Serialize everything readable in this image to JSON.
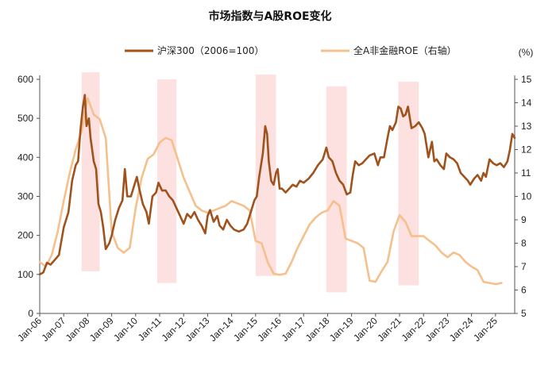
{
  "chart_data": {
    "type": "line",
    "title": "市场指数与A股ROE变化",
    "legend": {
      "placement": "top-center"
    },
    "x_tick_labels": [
      "Jan-06",
      "Jan-07",
      "Jan-08",
      "Jan-09",
      "Jan-10",
      "Jan-11",
      "Jan-12",
      "Jan-13",
      "Jan-14",
      "Jan-15",
      "Jan-16",
      "Jan-17",
      "Jan-18",
      "Jan-19",
      "Jan-20",
      "Jan-21",
      "Jan-22",
      "Jan-23",
      "Jan-24",
      "Jan-25"
    ],
    "x_range": [
      2006.0,
      2025.8
    ],
    "y_left": {
      "range": [
        0,
        600
      ],
      "ticks": [
        0,
        100,
        200,
        300,
        400,
        500,
        600
      ]
    },
    "y_right": {
      "range": [
        5,
        15
      ],
      "ticks": [
        5,
        6,
        7,
        8,
        9,
        10,
        11,
        12,
        13,
        14,
        15
      ],
      "unit": "(%)"
    },
    "shaded_periods": [
      {
        "x": [
          2007.75,
          2008.5
        ],
        "y_right": [
          6.8,
          15.3
        ]
      },
      {
        "x": [
          2010.9,
          2011.7
        ],
        "y_right": [
          6.3,
          15.0
        ]
      },
      {
        "x": [
          2015.0,
          2015.85
        ],
        "y_right": [
          6.6,
          15.2
        ]
      },
      {
        "x": [
          2017.95,
          2018.8
        ],
        "y_right": [
          5.9,
          14.7
        ]
      },
      {
        "x": [
          2020.95,
          2021.8
        ],
        "y_right": [
          6.2,
          14.9
        ]
      }
    ],
    "series": [
      {
        "name": "沪深300（2006=100）",
        "axis": "left",
        "color": "#a0521d",
        "points": [
          [
            2006.0,
            100
          ],
          [
            2006.15,
            105
          ],
          [
            2006.3,
            130
          ],
          [
            2006.45,
            125
          ],
          [
            2006.6,
            135
          ],
          [
            2006.8,
            150
          ],
          [
            2007.0,
            220
          ],
          [
            2007.2,
            260
          ],
          [
            2007.35,
            340
          ],
          [
            2007.5,
            380
          ],
          [
            2007.6,
            390
          ],
          [
            2007.7,
            470
          ],
          [
            2007.8,
            530
          ],
          [
            2007.88,
            560
          ],
          [
            2007.95,
            480
          ],
          [
            2008.05,
            500
          ],
          [
            2008.12,
            450
          ],
          [
            2008.25,
            390
          ],
          [
            2008.35,
            370
          ],
          [
            2008.45,
            280
          ],
          [
            2008.55,
            260
          ],
          [
            2008.65,
            220
          ],
          [
            2008.75,
            165
          ],
          [
            2008.9,
            180
          ],
          [
            2009.0,
            200
          ],
          [
            2009.15,
            240
          ],
          [
            2009.3,
            270
          ],
          [
            2009.45,
            290
          ],
          [
            2009.55,
            370
          ],
          [
            2009.65,
            300
          ],
          [
            2009.8,
            300
          ],
          [
            2009.95,
            330
          ],
          [
            2010.05,
            350
          ],
          [
            2010.15,
            320
          ],
          [
            2010.3,
            280
          ],
          [
            2010.45,
            260
          ],
          [
            2010.55,
            230
          ],
          [
            2010.7,
            300
          ],
          [
            2010.85,
            310
          ],
          [
            2010.95,
            335
          ],
          [
            2011.1,
            315
          ],
          [
            2011.25,
            315
          ],
          [
            2011.4,
            300
          ],
          [
            2011.55,
            290
          ],
          [
            2011.7,
            270
          ],
          [
            2011.85,
            250
          ],
          [
            2012.0,
            230
          ],
          [
            2012.15,
            255
          ],
          [
            2012.3,
            245
          ],
          [
            2012.45,
            260
          ],
          [
            2012.6,
            240
          ],
          [
            2012.75,
            225
          ],
          [
            2012.9,
            205
          ],
          [
            2013.0,
            250
          ],
          [
            2013.1,
            265
          ],
          [
            2013.25,
            235
          ],
          [
            2013.4,
            250
          ],
          [
            2013.5,
            225
          ],
          [
            2013.65,
            215
          ],
          [
            2013.8,
            240
          ],
          [
            2013.95,
            225
          ],
          [
            2014.1,
            215
          ],
          [
            2014.3,
            210
          ],
          [
            2014.5,
            215
          ],
          [
            2014.65,
            230
          ],
          [
            2014.8,
            260
          ],
          [
            2014.95,
            290
          ],
          [
            2015.05,
            300
          ],
          [
            2015.15,
            350
          ],
          [
            2015.3,
            410
          ],
          [
            2015.4,
            480
          ],
          [
            2015.48,
            460
          ],
          [
            2015.55,
            390
          ],
          [
            2015.65,
            340
          ],
          [
            2015.75,
            330
          ],
          [
            2015.85,
            360
          ],
          [
            2015.92,
            370
          ],
          [
            2016.0,
            320
          ],
          [
            2016.1,
            320
          ],
          [
            2016.25,
            310
          ],
          [
            2016.4,
            320
          ],
          [
            2016.55,
            330
          ],
          [
            2016.7,
            325
          ],
          [
            2016.85,
            340
          ],
          [
            2017.0,
            335
          ],
          [
            2017.2,
            345
          ],
          [
            2017.4,
            360
          ],
          [
            2017.6,
            380
          ],
          [
            2017.8,
            395
          ],
          [
            2017.95,
            425
          ],
          [
            2018.05,
            400
          ],
          [
            2018.2,
            390
          ],
          [
            2018.35,
            360
          ],
          [
            2018.5,
            340
          ],
          [
            2018.65,
            330
          ],
          [
            2018.8,
            305
          ],
          [
            2018.95,
            310
          ],
          [
            2019.05,
            355
          ],
          [
            2019.15,
            390
          ],
          [
            2019.3,
            380
          ],
          [
            2019.45,
            385
          ],
          [
            2019.6,
            395
          ],
          [
            2019.75,
            405
          ],
          [
            2019.95,
            410
          ],
          [
            2020.1,
            380
          ],
          [
            2020.2,
            400
          ],
          [
            2020.35,
            400
          ],
          [
            2020.5,
            450
          ],
          [
            2020.6,
            480
          ],
          [
            2020.7,
            470
          ],
          [
            2020.85,
            490
          ],
          [
            2020.95,
            530
          ],
          [
            2021.05,
            525
          ],
          [
            2021.15,
            505
          ],
          [
            2021.25,
            510
          ],
          [
            2021.35,
            530
          ],
          [
            2021.5,
            475
          ],
          [
            2021.65,
            480
          ],
          [
            2021.8,
            490
          ],
          [
            2021.95,
            475
          ],
          [
            2022.05,
            460
          ],
          [
            2022.2,
            400
          ],
          [
            2022.35,
            440
          ],
          [
            2022.45,
            390
          ],
          [
            2022.55,
            395
          ],
          [
            2022.7,
            380
          ],
          [
            2022.85,
            370
          ],
          [
            2022.95,
            410
          ],
          [
            2023.1,
            400
          ],
          [
            2023.25,
            395
          ],
          [
            2023.4,
            385
          ],
          [
            2023.55,
            360
          ],
          [
            2023.7,
            350
          ],
          [
            2023.85,
            340
          ],
          [
            2023.95,
            330
          ],
          [
            2024.1,
            345
          ],
          [
            2024.25,
            355
          ],
          [
            2024.4,
            340
          ],
          [
            2024.5,
            360
          ],
          [
            2024.6,
            350
          ],
          [
            2024.75,
            395
          ],
          [
            2024.9,
            385
          ],
          [
            2025.05,
            380
          ],
          [
            2025.2,
            385
          ],
          [
            2025.35,
            375
          ],
          [
            2025.5,
            390
          ],
          [
            2025.6,
            420
          ],
          [
            2025.7,
            460
          ],
          [
            2025.8,
            450
          ]
        ]
      },
      {
        "name": "全A非金融ROE（右轴）",
        "axis": "right",
        "color": "#f5c08c",
        "points": [
          [
            2006.0,
            7.2
          ],
          [
            2006.25,
            7.0
          ],
          [
            2006.5,
            7.5
          ],
          [
            2006.75,
            8.5
          ],
          [
            2007.0,
            9.8
          ],
          [
            2007.25,
            11.0
          ],
          [
            2007.5,
            12.0
          ],
          [
            2007.75,
            12.8
          ],
          [
            2008.0,
            14.2
          ],
          [
            2008.25,
            13.5
          ],
          [
            2008.5,
            13.3
          ],
          [
            2008.75,
            12.5
          ],
          [
            2009.0,
            8.5
          ],
          [
            2009.25,
            7.8
          ],
          [
            2009.5,
            7.6
          ],
          [
            2009.75,
            7.8
          ],
          [
            2010.0,
            9.5
          ],
          [
            2010.25,
            10.8
          ],
          [
            2010.5,
            11.6
          ],
          [
            2010.75,
            11.8
          ],
          [
            2011.0,
            12.3
          ],
          [
            2011.25,
            12.5
          ],
          [
            2011.5,
            12.4
          ],
          [
            2011.75,
            11.6
          ],
          [
            2012.0,
            10.8
          ],
          [
            2012.25,
            10.2
          ],
          [
            2012.5,
            9.6
          ],
          [
            2012.75,
            9.4
          ],
          [
            2013.0,
            9.3
          ],
          [
            2013.25,
            9.4
          ],
          [
            2013.5,
            9.5
          ],
          [
            2013.75,
            9.6
          ],
          [
            2014.0,
            9.8
          ],
          [
            2014.25,
            9.7
          ],
          [
            2014.5,
            9.6
          ],
          [
            2014.75,
            9.4
          ],
          [
            2015.0,
            8.1
          ],
          [
            2015.25,
            8.0
          ],
          [
            2015.5,
            7.2
          ],
          [
            2015.75,
            6.7
          ],
          [
            2016.0,
            6.65
          ],
          [
            2016.25,
            6.7
          ],
          [
            2016.5,
            7.2
          ],
          [
            2016.75,
            7.8
          ],
          [
            2017.0,
            8.3
          ],
          [
            2017.25,
            8.8
          ],
          [
            2017.5,
            9.1
          ],
          [
            2017.75,
            9.3
          ],
          [
            2018.0,
            9.4
          ],
          [
            2018.25,
            9.8
          ],
          [
            2018.5,
            9.6
          ],
          [
            2018.75,
            8.2
          ],
          [
            2019.0,
            8.1
          ],
          [
            2019.25,
            8.0
          ],
          [
            2019.5,
            7.8
          ],
          [
            2019.75,
            6.4
          ],
          [
            2020.0,
            6.35
          ],
          [
            2020.25,
            6.8
          ],
          [
            2020.5,
            7.2
          ],
          [
            2020.75,
            8.5
          ],
          [
            2021.0,
            9.2
          ],
          [
            2021.25,
            8.9
          ],
          [
            2021.5,
            8.3
          ],
          [
            2021.75,
            8.3
          ],
          [
            2022.0,
            8.3
          ],
          [
            2022.25,
            8.1
          ],
          [
            2022.5,
            7.9
          ],
          [
            2022.75,
            7.6
          ],
          [
            2023.0,
            7.4
          ],
          [
            2023.25,
            7.6
          ],
          [
            2023.5,
            7.5
          ],
          [
            2023.75,
            7.2
          ],
          [
            2024.0,
            7.0
          ],
          [
            2024.25,
            6.85
          ],
          [
            2024.5,
            6.35
          ],
          [
            2024.75,
            6.3
          ],
          [
            2025.0,
            6.25
          ],
          [
            2025.25,
            6.3
          ]
        ]
      }
    ]
  }
}
